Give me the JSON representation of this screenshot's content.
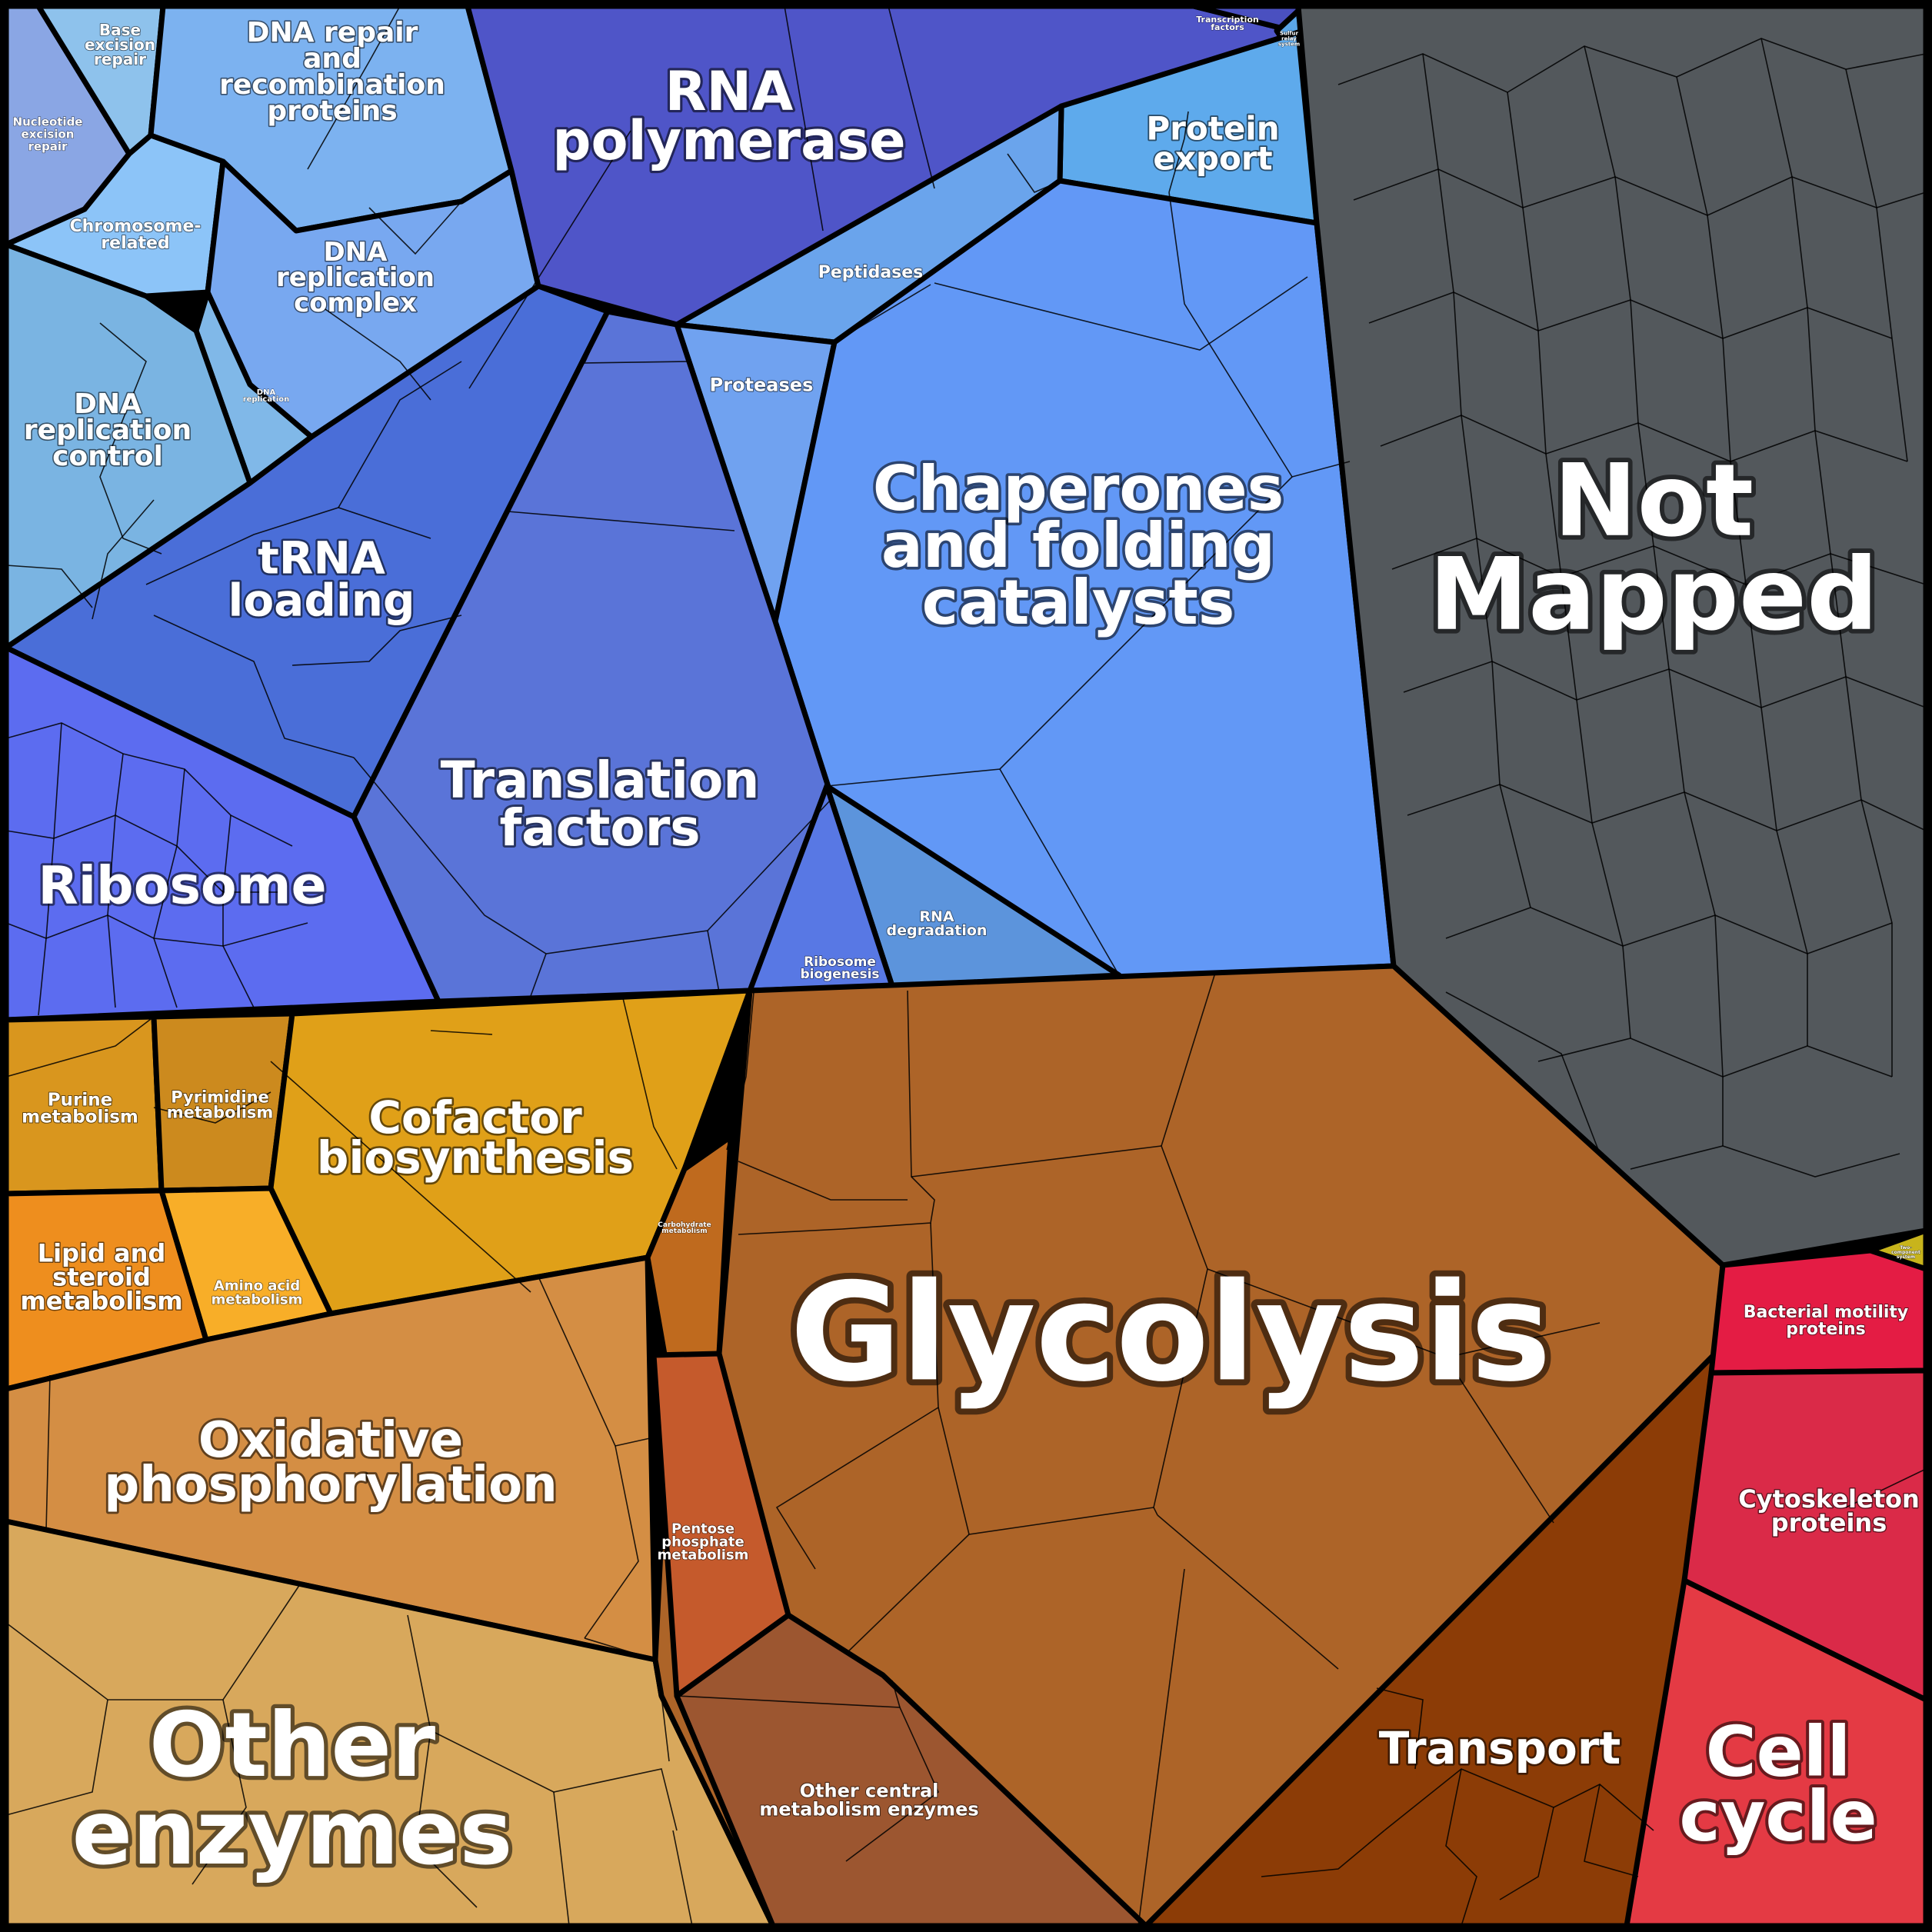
{
  "diagram": {
    "type": "voronoi-treemap",
    "regions": [
      {
        "id": "base-excision",
        "text": [
          "Base",
          "excision",
          "repair"
        ],
        "color": "#8ec2ec"
      },
      {
        "id": "nucleotide-excision",
        "text": [
          "Nucleotide",
          "excision",
          "repair"
        ],
        "color": "#8aa6e4"
      },
      {
        "id": "dna-repair",
        "text": [
          "DNA repair",
          "and",
          "recombination",
          "proteins"
        ],
        "color": "#7cb2f0"
      },
      {
        "id": "chromosome-related",
        "text": [
          "Chromosome-",
          "related"
        ],
        "color": "#8cc4f8"
      },
      {
        "id": "dna-replication-complex",
        "text": [
          "DNA",
          "replication",
          "complex"
        ],
        "color": "#78a8f0"
      },
      {
        "id": "dna-replication-small",
        "text": [
          "DNA",
          "replication"
        ],
        "color": "#80b8e8"
      },
      {
        "id": "dna-replication-control",
        "text": [
          "DNA",
          "replication",
          "control"
        ],
        "color": "#7ab4e2"
      },
      {
        "id": "rna-polymerase",
        "text": [
          "RNA",
          "polymerase"
        ],
        "color": "#4f55c8"
      },
      {
        "id": "transcription-factors",
        "text": [
          "Transcription",
          "factors"
        ],
        "color": "#4a50c0"
      },
      {
        "id": "sulfur-relay",
        "text": [
          "Sulfur",
          "relay",
          "system"
        ],
        "color": "#5aa6e8"
      },
      {
        "id": "protein-export",
        "text": [
          "Protein",
          "export"
        ],
        "color": "#5eaaec"
      },
      {
        "id": "peptidases",
        "text": [
          "Peptidases"
        ],
        "color": "#6aa4ec"
      },
      {
        "id": "proteases",
        "text": [
          "Proteases"
        ],
        "color": "#70a2f0"
      },
      {
        "id": "chaperones",
        "text": [
          "Chaperones",
          "and folding",
          "catalysts"
        ],
        "color": "#6298f6"
      },
      {
        "id": "trna-loading",
        "text": [
          "tRNA",
          "loading"
        ],
        "color": "#4a6ed8"
      },
      {
        "id": "translation-factors",
        "text": [
          "Translation",
          "factors"
        ],
        "color": "#5a74d8"
      },
      {
        "id": "ribosome",
        "text": [
          "Ribosome"
        ],
        "color": "#5c6cf0"
      },
      {
        "id": "rna-degradation",
        "text": [
          "RNA",
          "degradation"
        ],
        "color": "#5c94dc"
      },
      {
        "id": "ribosome-biogenesis",
        "text": [
          "Ribosome",
          "biogenesis"
        ],
        "color": "#5878e4"
      },
      {
        "id": "not-mapped",
        "text": [
          "Not",
          "Mapped"
        ],
        "color": "#53585c"
      },
      {
        "id": "purine",
        "text": [
          "Purine",
          "metabolism"
        ],
        "color": "#d9961e"
      },
      {
        "id": "pyrimidine",
        "text": [
          "Pyrimidine",
          "metabolism"
        ],
        "color": "#cc8a1e"
      },
      {
        "id": "cofactor",
        "text": [
          "Cofactor",
          "biosynthesis"
        ],
        "color": "#e0a018"
      },
      {
        "id": "lipid",
        "text": [
          "Lipid and",
          "steroid",
          "metabolism"
        ],
        "color": "#ee8e1e"
      },
      {
        "id": "amino-acid",
        "text": [
          "Amino acid",
          "metabolism"
        ],
        "color": "#f8ae28"
      },
      {
        "id": "oxidative",
        "text": [
          "Oxidative",
          "phosphorylation"
        ],
        "color": "#d48e44"
      },
      {
        "id": "other-enzymes",
        "text": [
          "Other",
          "enzymes"
        ],
        "color": "#d8a85c"
      },
      {
        "id": "carbohydrate",
        "text": [
          "Carbohydrate",
          "metabolism"
        ],
        "color": "#bf6a1e"
      },
      {
        "id": "glycolysis",
        "text": [
          "Glycolysis"
        ],
        "color": "#ad6428"
      },
      {
        "id": "pentose",
        "text": [
          "Pentose",
          "phosphate",
          "metabolism"
        ],
        "color": "#c55a2c"
      },
      {
        "id": "other-central",
        "text": [
          "Other central",
          "metabolism enzymes"
        ],
        "color": "#9c5630"
      },
      {
        "id": "transport",
        "text": [
          "Transport"
        ],
        "color": "#8c3c06"
      },
      {
        "id": "unknown-yellow",
        "text": [
          "Two-",
          "component",
          "system"
        ],
        "color": "#c8b41c"
      },
      {
        "id": "bacterial-motility",
        "text": [
          "Bacterial motility",
          "proteins"
        ],
        "color": "#e41c44"
      },
      {
        "id": "cytoskeleton",
        "text": [
          "Cytoskeleton",
          "proteins"
        ],
        "color": "#da2a48"
      },
      {
        "id": "cell-cycle",
        "text": [
          "Cell",
          "cycle"
        ],
        "color": "#e43a44"
      }
    ]
  }
}
